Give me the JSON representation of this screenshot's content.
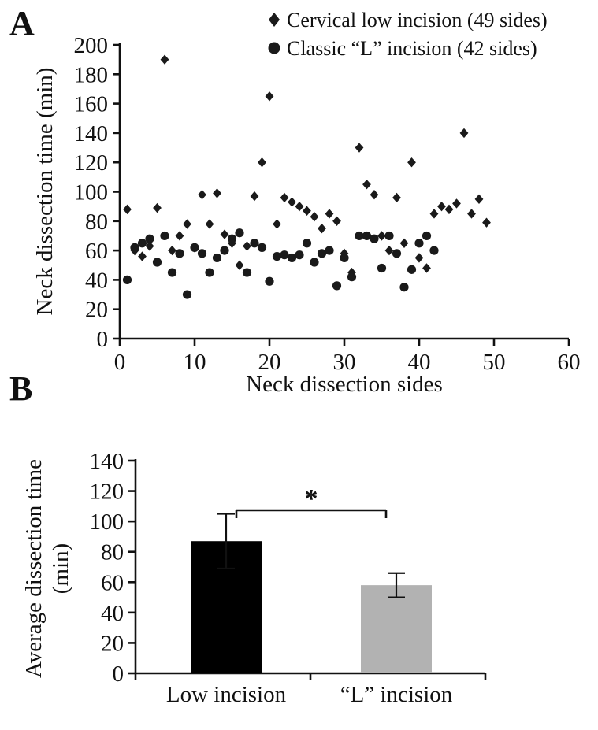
{
  "figure": {
    "panel_a": {
      "label": "A"
    },
    "panel_b": {
      "label": "B",
      "ylabel_line1": "Average dissection time",
      "ylabel_line2": "(min)"
    }
  },
  "chart_data": [
    {
      "type": "scatter",
      "title": "",
      "xlabel": "Neck dissection sides",
      "ylabel": "Neck dissection time (min)",
      "xlim": [
        0,
        60
      ],
      "ylim": [
        0,
        200
      ],
      "xticks": [
        0,
        10,
        20,
        30,
        40,
        50,
        60
      ],
      "yticks": [
        0,
        20,
        40,
        60,
        80,
        100,
        120,
        140,
        160,
        180,
        200
      ],
      "grid": false,
      "legend_position": "top-right",
      "series": [
        {
          "name": "Cervical low incision (49 sides)",
          "marker": "diamond",
          "color": "#1a1a1a",
          "points": [
            [
              1,
              88
            ],
            [
              2,
              60
            ],
            [
              3,
              56
            ],
            [
              4,
              63
            ],
            [
              5,
              89
            ],
            [
              6,
              190
            ],
            [
              7,
              60
            ],
            [
              8,
              70
            ],
            [
              9,
              78
            ],
            [
              10,
              62
            ],
            [
              11,
              98
            ],
            [
              12,
              78
            ],
            [
              13,
              99
            ],
            [
              14,
              71
            ],
            [
              15,
              65
            ],
            [
              16,
              50
            ],
            [
              17,
              63
            ],
            [
              18,
              97
            ],
            [
              19,
              120
            ],
            [
              20,
              165
            ],
            [
              21,
              78
            ],
            [
              22,
              96
            ],
            [
              23,
              93
            ],
            [
              24,
              90
            ],
            [
              25,
              87
            ],
            [
              26,
              83
            ],
            [
              27,
              75
            ],
            [
              28,
              85
            ],
            [
              29,
              80
            ],
            [
              30,
              58
            ],
            [
              31,
              45
            ],
            [
              32,
              130
            ],
            [
              33,
              105
            ],
            [
              34,
              98
            ],
            [
              35,
              70
            ],
            [
              36,
              60
            ],
            [
              37,
              96
            ],
            [
              38,
              65
            ],
            [
              39,
              120
            ],
            [
              40,
              55
            ],
            [
              41,
              48
            ],
            [
              42,
              85
            ],
            [
              43,
              90
            ],
            [
              44,
              88
            ],
            [
              45,
              92
            ],
            [
              46,
              140
            ],
            [
              47,
              85
            ],
            [
              48,
              95
            ],
            [
              49,
              79
            ]
          ]
        },
        {
          "name": "Classic “L” incision (42 sides)",
          "marker": "circle",
          "color": "#1a1a1a",
          "points": [
            [
              1,
              40
            ],
            [
              2,
              62
            ],
            [
              3,
              65
            ],
            [
              4,
              68
            ],
            [
              5,
              52
            ],
            [
              6,
              70
            ],
            [
              7,
              45
            ],
            [
              8,
              58
            ],
            [
              9,
              30
            ],
            [
              10,
              62
            ],
            [
              11,
              58
            ],
            [
              12,
              45
            ],
            [
              13,
              55
            ],
            [
              14,
              60
            ],
            [
              15,
              68
            ],
            [
              16,
              72
            ],
            [
              17,
              45
            ],
            [
              18,
              65
            ],
            [
              19,
              62
            ],
            [
              20,
              39
            ],
            [
              21,
              56
            ],
            [
              22,
              57
            ],
            [
              23,
              55
            ],
            [
              24,
              57
            ],
            [
              25,
              65
            ],
            [
              26,
              52
            ],
            [
              27,
              58
            ],
            [
              28,
              60
            ],
            [
              29,
              36
            ],
            [
              30,
              55
            ],
            [
              31,
              42
            ],
            [
              32,
              70
            ],
            [
              33,
              70
            ],
            [
              34,
              68
            ],
            [
              35,
              48
            ],
            [
              36,
              70
            ],
            [
              37,
              58
            ],
            [
              38,
              35
            ],
            [
              39,
              47
            ],
            [
              40,
              65
            ],
            [
              41,
              70
            ],
            [
              42,
              60
            ]
          ]
        }
      ]
    },
    {
      "type": "bar",
      "categories": [
        "Low incision",
        "“L” incision"
      ],
      "values": [
        87,
        58
      ],
      "errors": [
        18,
        8
      ],
      "colors": [
        "#000000",
        "#b2b2b2"
      ],
      "title": "",
      "xlabel": "",
      "ylabel": "Average dissection time (min)",
      "ylim": [
        0,
        140
      ],
      "yticks": [
        0,
        20,
        40,
        60,
        80,
        100,
        120,
        140
      ],
      "grid": false,
      "significance": {
        "label": "*",
        "between": [
          0,
          1
        ]
      }
    }
  ]
}
